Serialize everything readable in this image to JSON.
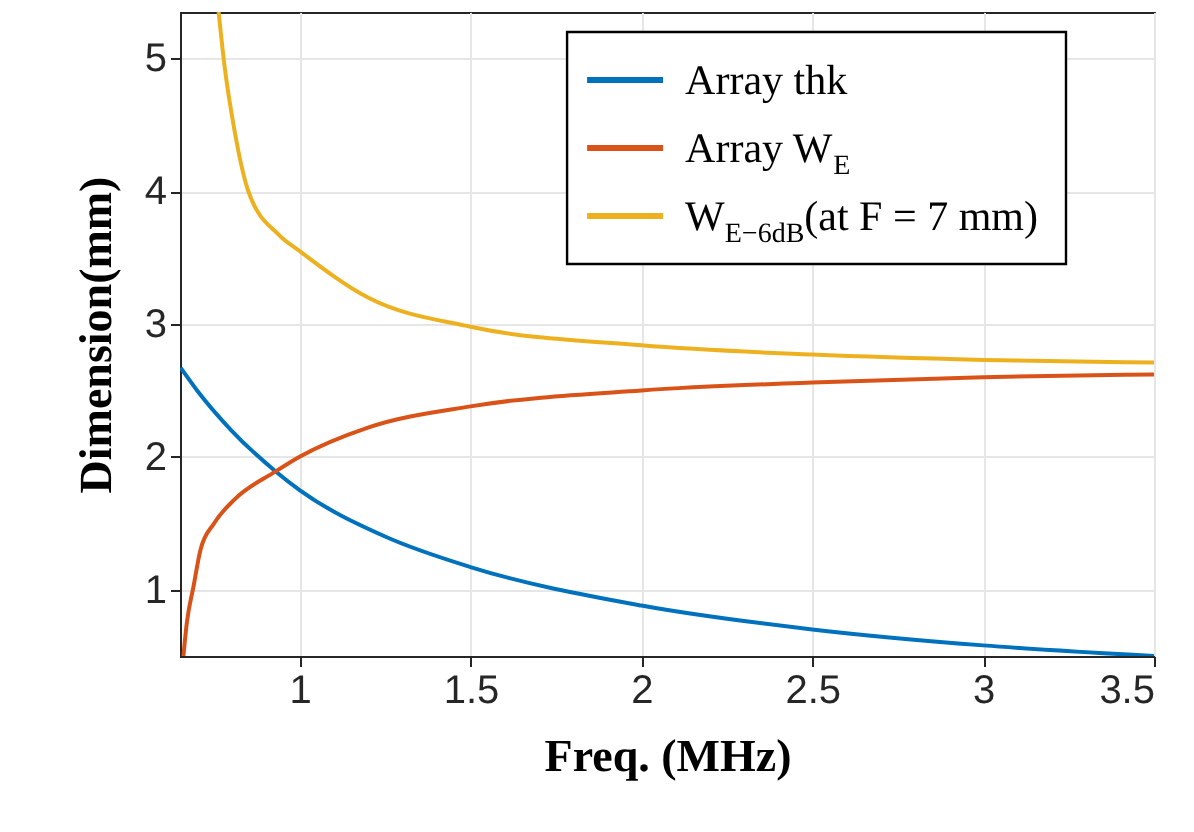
{
  "chart_data": {
    "type": "line",
    "xlabel": "Freq. (MHz)",
    "ylabel": "Dimension(mm)",
    "xlim": [
      0.65,
      3.5
    ],
    "ylim": [
      0.5,
      5.35
    ],
    "xticks": [
      1,
      1.5,
      2,
      2.5,
      3,
      3.5
    ],
    "yticks": [
      1,
      2,
      3,
      4,
      5
    ],
    "grid": true,
    "legend": "top right",
    "marker": "none",
    "line_style": "solid",
    "series": [
      {
        "name": "Array thk",
        "color": "#0072bd",
        "x": [
          0.652,
          0.7,
          0.8,
          0.93,
          1,
          1.25,
          1.5,
          2,
          2.5,
          3,
          3.5
        ],
        "values": [
          2.67,
          2.5,
          2.2,
          1.89,
          1.75,
          1.4,
          1.17,
          0.88,
          0.7,
          0.58,
          0.5
        ]
      },
      {
        "name": "Array W$_{E}$",
        "color": "#d95319",
        "x": [
          0.66,
          0.67,
          0.69,
          0.71,
          0.75,
          0.81,
          0.93,
          1,
          1.2,
          1.5,
          2,
          2.5,
          3,
          3.5
        ],
        "values": [
          0.5,
          0.75,
          1.03,
          1.3,
          1.5,
          1.68,
          1.89,
          2.0,
          2.22,
          2.38,
          2.5,
          2.56,
          2.6,
          2.62
        ]
      },
      {
        "name": "W$_{E−6dB}$(at F = 7 mm)",
        "color": "#edb120",
        "x": [
          0.763,
          0.78,
          0.81,
          0.85,
          0.94,
          1,
          1.2,
          1.5,
          2,
          2.5,
          3,
          3.5
        ],
        "values": [
          5.35,
          4.95,
          4.45,
          4.0,
          3.67,
          3.55,
          3.2,
          2.98,
          2.84,
          2.77,
          2.73,
          2.71
        ]
      }
    ]
  }
}
